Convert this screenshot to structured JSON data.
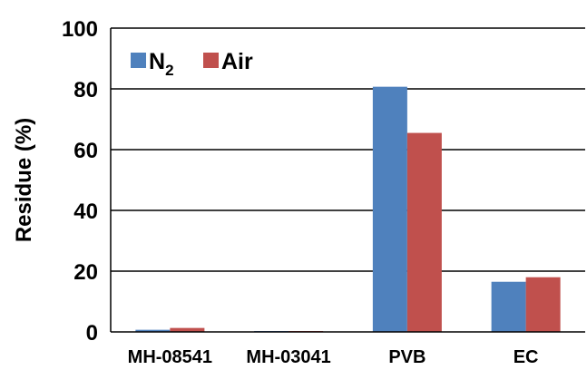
{
  "chart_data": {
    "type": "bar",
    "title": "",
    "xlabel": "",
    "ylabel": "Residue (%)",
    "ylim": [
      0,
      100
    ],
    "yticks": [
      0,
      20,
      40,
      60,
      80,
      100
    ],
    "grid": true,
    "legend_position": "top-left",
    "categories": [
      "MH-08541",
      "MH-03041",
      "PVB",
      "EC"
    ],
    "series": [
      {
        "name": "N2",
        "legend_main": "N",
        "legend_sub": "2",
        "color": "#4f81bd",
        "values": [
          0.7,
          0.3,
          80.7,
          16.5
        ]
      },
      {
        "name": "Air",
        "legend_main": "Air",
        "legend_sub": "",
        "color": "#c0504d",
        "values": [
          1.3,
          0.3,
          65.5,
          18.0
        ]
      }
    ]
  }
}
